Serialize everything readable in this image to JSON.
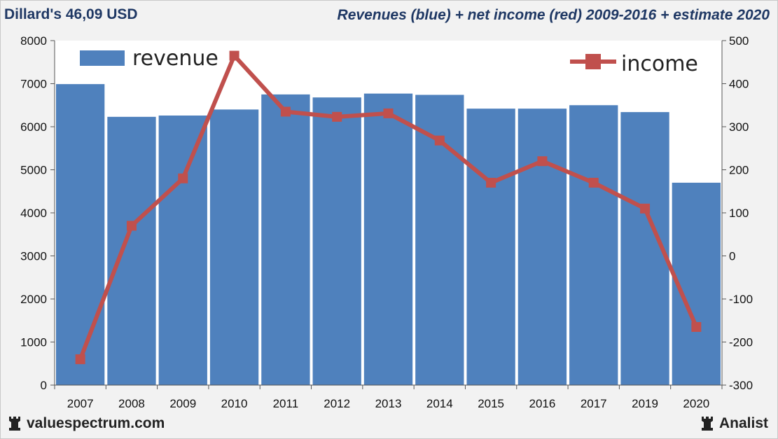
{
  "header": {
    "left_title": "Dillard's 46,09 USD",
    "right_title": "Revenues (blue) + net income (red) 2009-2016 + estimate 2020"
  },
  "footer": {
    "left_brand": "valuespectrum.com",
    "right_brand": "Analist"
  },
  "colors": {
    "bar": "#4f81bd",
    "line": "#c0504d",
    "plot_bg": "#ffffff",
    "title": "#1f3864"
  },
  "chart_data": {
    "type": "bar",
    "title": "Revenues (blue) + net income (red) 2009-2016 + estimate 2020",
    "categories": [
      "2007",
      "2008",
      "2009",
      "2010",
      "2011",
      "2012",
      "2013",
      "2014",
      "2015",
      "2016",
      "2017",
      "2019",
      "2020"
    ],
    "series": [
      {
        "name": "revenue",
        "type": "bar",
        "axis": "left",
        "values": [
          6990,
          6230,
          6260,
          6400,
          6750,
          6680,
          6770,
          6740,
          6420,
          6420,
          6500,
          6340,
          4700
        ]
      },
      {
        "name": "income",
        "type": "line",
        "axis": "right",
        "values": [
          -240,
          70,
          180,
          465,
          335,
          323,
          331,
          268,
          170,
          220,
          170,
          110,
          -165
        ]
      }
    ],
    "y_left": {
      "min": 0,
      "max": 8000,
      "ticks": [
        "0",
        "1000",
        "2000",
        "3000",
        "4000",
        "5000",
        "6000",
        "7000",
        "8000"
      ]
    },
    "y_right": {
      "min": -300,
      "max": 500,
      "ticks": [
        "-300",
        "-200",
        "-100",
        "0",
        "100",
        "200",
        "300",
        "400",
        "500"
      ]
    },
    "legend": {
      "revenue_label": "revenue",
      "income_label": "income",
      "revenue_position": "top-left",
      "income_position": "top-right"
    },
    "grid": false
  }
}
